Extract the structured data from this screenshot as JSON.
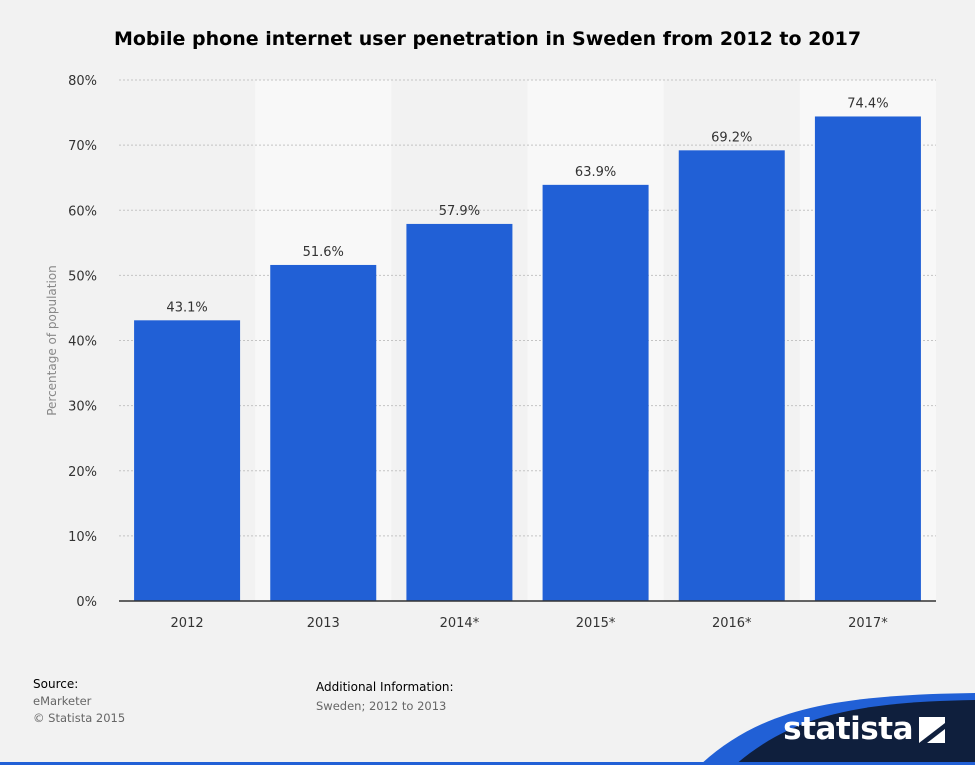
{
  "chart_data": {
    "type": "bar",
    "title": "Mobile phone internet user penetration in Sweden from 2012 to 2017",
    "ylabel": "Percentage of population",
    "xlabel": "",
    "categories": [
      "2012",
      "2013",
      "2014*",
      "2015*",
      "2016*",
      "2017*"
    ],
    "values": [
      43.1,
      51.6,
      57.9,
      63.9,
      69.2,
      74.4
    ],
    "value_labels": [
      "43.1%",
      "51.6%",
      "57.9%",
      "63.9%",
      "69.2%",
      "74.4%"
    ],
    "ylim": [
      0,
      80
    ],
    "yticks": [
      0,
      10,
      20,
      30,
      40,
      50,
      60,
      70,
      80
    ],
    "ytick_labels": [
      "0%",
      "10%",
      "20%",
      "30%",
      "40%",
      "50%",
      "60%",
      "70%",
      "80%"
    ],
    "bar_color": "#2160d6",
    "grid": true,
    "legend": "none"
  },
  "footer": {
    "source_heading": "Source:",
    "source_lines": [
      "eMarketer",
      "© Statista 2015"
    ],
    "info_heading": "Additional Information:",
    "info_lines": [
      "Sweden; 2012 to 2013"
    ]
  },
  "brand": {
    "name": "statista",
    "icon": "statista-logo-icon",
    "dark_color": "#0f1f3d",
    "accent_color": "#2160d6"
  }
}
